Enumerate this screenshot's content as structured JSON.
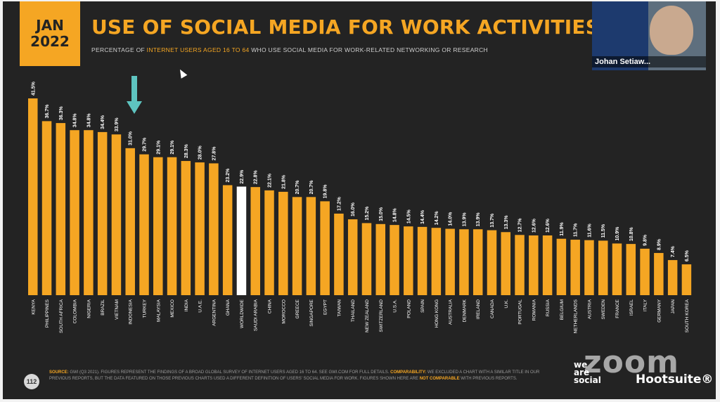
{
  "badge": {
    "month": "JAN",
    "year": "2022"
  },
  "title": "USE OF SOCIAL MEDIA FOR WORK ACTIVITIES",
  "subtitle": {
    "pre": "PERCENTAGE OF ",
    "highlight": "INTERNET USERS AGED 16 TO 64",
    "post": " WHO USE SOCIAL MEDIA FOR WORK-RELATED NETWORKING OR RESEARCH"
  },
  "video": {
    "name": "Johan Setiaw..."
  },
  "page_number": "112",
  "footer": {
    "source_label": "SOURCE:",
    "source_text": "GWI (Q3 2021). FIGURES REPRESENT THE FINDINGS OF A BROAD GLOBAL SURVEY OF INTERNET USERS AGED 16 TO 64. SEE GWI.COM FOR FULL DETAILS.",
    "comparability_label": "COMPARABILITY:",
    "comparability_text": "WE EXCLUDED A CHART WITH A SIMILAR TITLE IN OUR PREVIOUS REPORTS, BUT THE DATA FEATURED ON THOSE PREVIOUS CHARTS USED A DIFFERENT DEFINITION OF USERS' SOCIAL MEDIA FOR WORK. FIGURES SHOWN HERE ARE",
    "not_comparable": "NOT COMPARABLE",
    "tail": "WITH PREVIOUS REPORTS."
  },
  "brands": {
    "was1": "we",
    "was2": "are",
    "was3": "social",
    "hootsuite": "Hootsuite®",
    "zoom": "zoom"
  },
  "colors": {
    "bar": "#f5a623",
    "highlight_bar": "#ffffff",
    "arrow": "#5ec4c0",
    "background": "#232323",
    "label": "#ffffff"
  },
  "chart_data": {
    "type": "bar",
    "title": "USE OF SOCIAL MEDIA FOR WORK ACTIVITIES",
    "xlabel": "",
    "ylabel": "",
    "ylim": [
      0,
      45
    ],
    "highlight": "WORLDWIDE",
    "arrow_target": "INDONESIA",
    "categories": [
      "KENYA",
      "PHILIPPINES",
      "SOUTH AFRICA",
      "COLOMBIA",
      "NIGERIA",
      "BRAZIL",
      "VIETNAM",
      "INDONESIA",
      "TURKEY",
      "MALAYSIA",
      "MEXICO",
      "INDIA",
      "U.A.E.",
      "ARGENTINA",
      "GHANA",
      "WORLDWIDE",
      "SAUDI ARABIA",
      "CHINA",
      "MOROCCO",
      "GREECE",
      "SINGAPORE",
      "EGYPT",
      "TAIWAN",
      "THAILAND",
      "NEW ZEALAND",
      "SWITZERLAND",
      "U.S.A.",
      "POLAND",
      "SPAIN",
      "HONG KONG",
      "AUSTRALIA",
      "DENMARK",
      "IRELAND",
      "CANADA",
      "U.K.",
      "PORTUGAL",
      "ROMANIA",
      "RUSSIA",
      "BELGIUM",
      "NETHERLANDS",
      "AUSTRIA",
      "SWEDEN",
      "FRANCE",
      "ISRAEL",
      "ITALY",
      "GERMANY",
      "JAPAN",
      "SOUTH KOREA"
    ],
    "values": [
      41.5,
      36.7,
      36.3,
      34.8,
      34.8,
      34.4,
      33.9,
      31.0,
      29.7,
      29.1,
      29.1,
      28.3,
      28.0,
      27.8,
      23.2,
      22.9,
      22.8,
      22.1,
      21.8,
      20.7,
      20.7,
      19.8,
      17.2,
      16.0,
      15.2,
      15.0,
      14.8,
      14.5,
      14.4,
      14.2,
      14.0,
      13.9,
      13.9,
      13.7,
      13.3,
      12.7,
      12.6,
      12.6,
      11.9,
      11.7,
      11.6,
      11.5,
      10.9,
      10.8,
      9.8,
      8.9,
      7.4,
      6.5
    ],
    "value_labels": [
      "41.5%",
      "36.7%",
      "36.3%",
      "34.8%",
      "34.8%",
      "34.4%",
      "33.9%",
      "31.0%",
      "29.7%",
      "29.1%",
      "29.1%",
      "28.3%",
      "28.0%",
      "27.8%",
      "23.2%",
      "22.9%",
      "22.8%",
      "22.1%",
      "21.8%",
      "20.7%",
      "20.7%",
      "19.8%",
      "17.2%",
      "16.0%",
      "15.2%",
      "15.0%",
      "14.8%",
      "14.5%",
      "14.4%",
      "14.2%",
      "14.0%",
      "13.9%",
      "13.9%",
      "13.7%",
      "13.3%",
      "12.7%",
      "12.6%",
      "12.6%",
      "11.9%",
      "11.7%",
      "11.6%",
      "11.5%",
      "10.9%",
      "10.8%",
      "9.8%",
      "8.9%",
      "7.4%",
      "6.5%"
    ]
  }
}
